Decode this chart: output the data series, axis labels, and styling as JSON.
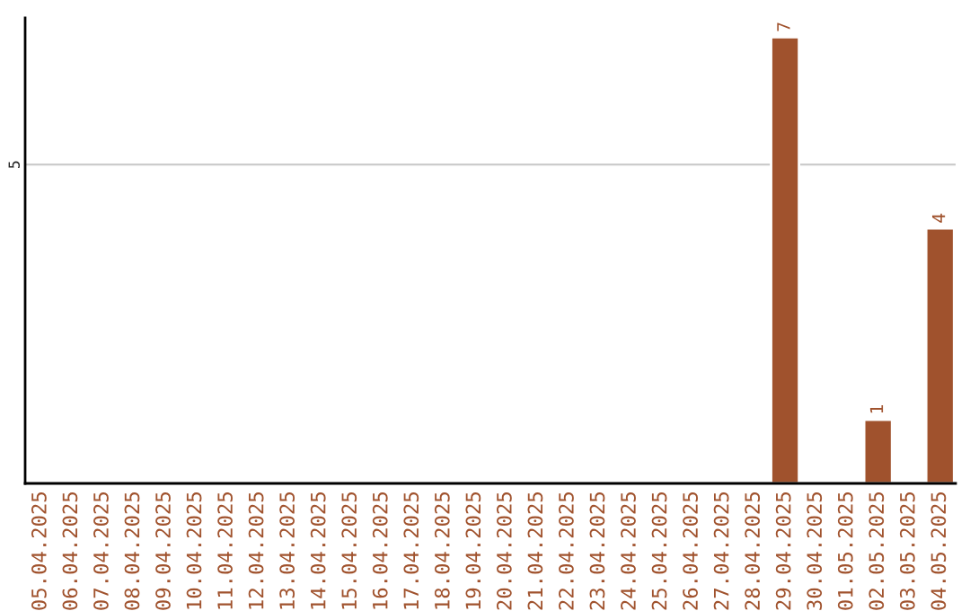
{
  "chart_data": {
    "type": "bar",
    "categories": [
      "05.04.2025",
      "06.04.2025",
      "07.04.2025",
      "08.04.2025",
      "09.04.2025",
      "10.04.2025",
      "11.04.2025",
      "12.04.2025",
      "13.04.2025",
      "14.04.2025",
      "15.04.2025",
      "16.04.2025",
      "17.04.2025",
      "18.04.2025",
      "19.04.2025",
      "20.04.2025",
      "21.04.2025",
      "22.04.2025",
      "23.04.2025",
      "24.04.2025",
      "25.04.2025",
      "26.04.2025",
      "27.04.2025",
      "28.04.2025",
      "29.04.2025",
      "30.04.2025",
      "01.05.2025",
      "02.05.2025",
      "03.05.2025",
      "04.05.2025"
    ],
    "values": [
      null,
      null,
      null,
      null,
      null,
      null,
      null,
      null,
      null,
      null,
      null,
      null,
      null,
      null,
      null,
      null,
      null,
      null,
      null,
      null,
      null,
      null,
      null,
      null,
      7,
      null,
      null,
      1,
      null,
      4
    ],
    "data_labels": true,
    "color": "#a0522d",
    "ylim": [
      0,
      7.3
    ],
    "yticks": [
      5
    ],
    "grid": "y",
    "legend": false
  }
}
